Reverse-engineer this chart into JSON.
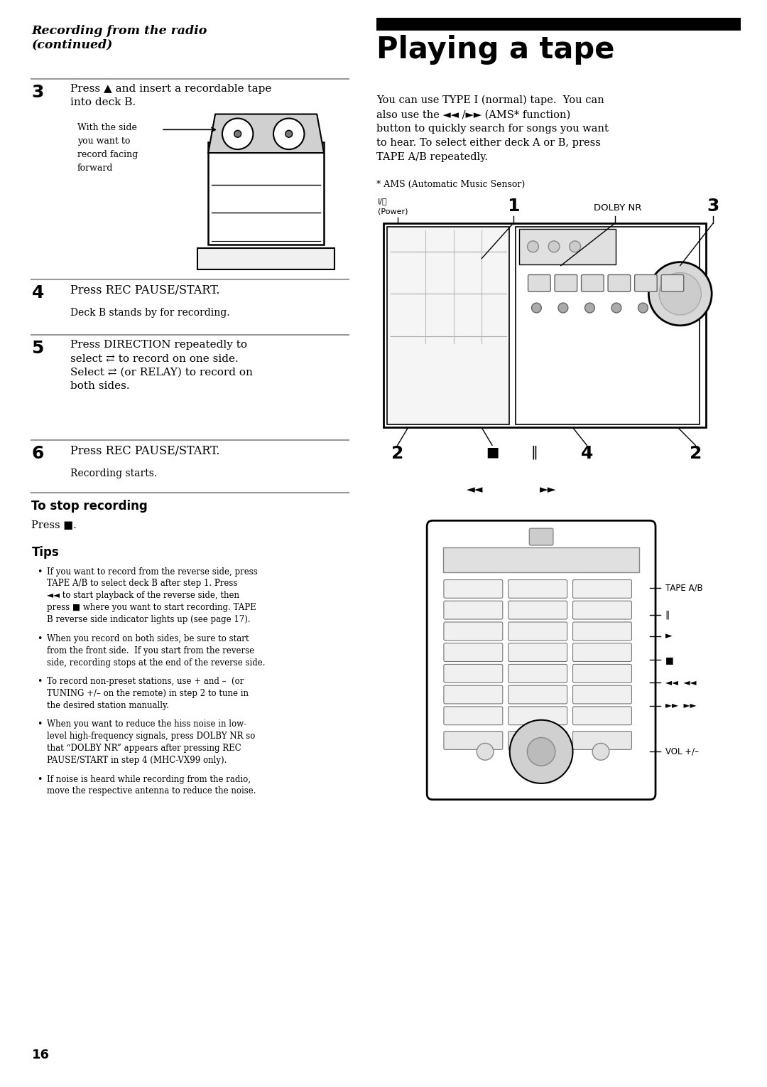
{
  "page_bg": "#ffffff",
  "section_title": "Recording from the radio\n(continued)",
  "main_title": "Playing a tape",
  "step3_num": "3",
  "step3_main": "Press ▲ and insert a recordable tape\ninto deck B.",
  "step3_sub": "With the side\nyou want to\nrecord facing\nforward",
  "step4_num": "4",
  "step4_main": "Press REC PAUSE/START.",
  "step4_sub": "Deck B stands by for recording.",
  "step5_num": "5",
  "step5_main": "Press DIRECTION repeatedly to\nselect ⇄ to record on one side.\nSelect ⇄ (or RELAY) to record on\nboth sides.",
  "step6_num": "6",
  "step6_main": "Press REC PAUSE/START.",
  "step6_sub": "Recording starts.",
  "stop_title": "To stop recording",
  "stop_text": "Press ■.",
  "tips_title": "Tips",
  "tips": [
    "If you want to record from the reverse side, press\nTAPE A/B to select deck B after step 1. Press\n◄◄ to start playback of the reverse side, then\npress ■ where you want to start recording. TAPE\nB reverse side indicator lights up (see page 17).",
    "When you record on both sides, be sure to start\nfrom the front side.  If you start from the reverse\nside, recording stops at the end of the reverse side.",
    "To record non-preset stations, use + and –  (or\nTUNING +/– on the remote) in step 2 to tune in\nthe desired station manually.",
    "When you want to reduce the hiss noise in low-\nlevel high-frequency signals, press DOLBY NR so\nthat “DOLBY NR” appears after pressing REC\nPAUSE/START in step 4 (MHC-VX99 only).",
    "If noise is heard while recording from the radio,\nmove the respective antenna to reduce the noise."
  ],
  "page_num": "16",
  "right_para": "You can use TYPE I (normal) tape.  You can\nalso use the ◄◄ /►► (AMS* function)\nbutton to quickly search for songs you want\nto hear. To select either deck A or B, press\nTAPE A/B repeatedly.",
  "ams_note": "* AMS (Automatic Music Sensor)",
  "rule_color": "#999999",
  "black": "#000000",
  "white": "#ffffff",
  "gray_light": "#e8e8e8",
  "gray_mid": "#cccccc",
  "gray_dark": "#888888"
}
